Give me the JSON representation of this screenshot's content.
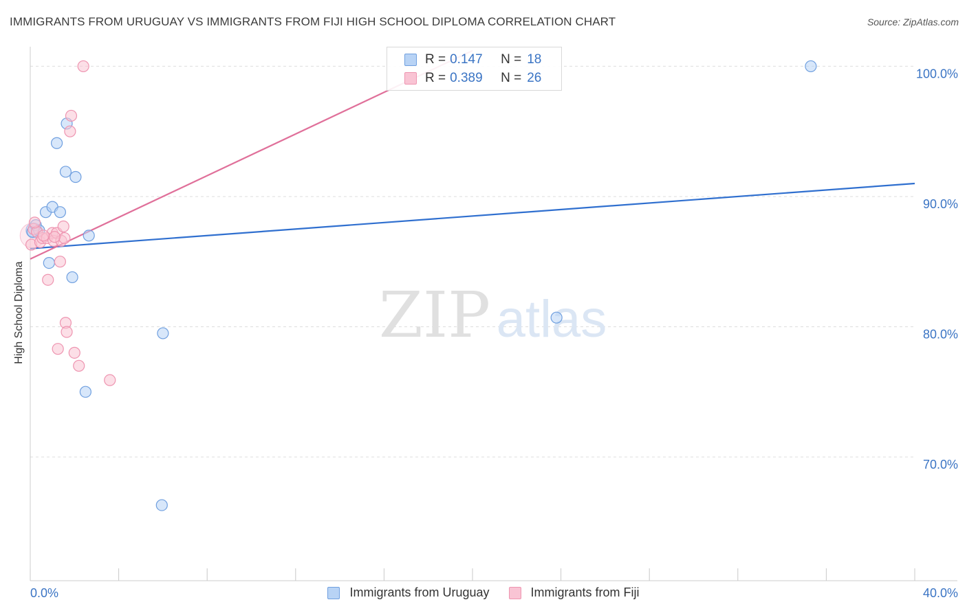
{
  "header": {
    "title": "IMMIGRANTS FROM URUGUAY VS IMMIGRANTS FROM FIJI HIGH SCHOOL DIPLOMA CORRELATION CHART",
    "source": "Source: ZipAtlas.com"
  },
  "watermark": {
    "zip": "ZIP",
    "atlas": "atlas"
  },
  "legend": {
    "rows": [
      {
        "r_label": "R =",
        "r_value": "0.147",
        "n_label": "N =",
        "n_value": "18"
      },
      {
        "r_label": "R =",
        "r_value": "0.389",
        "n_label": "N =",
        "n_value": "26"
      }
    ]
  },
  "colors": {
    "blue_fill": "#b8d3f5",
    "blue_stroke": "#6f9fdf",
    "blue_line": "#2f6fcf",
    "pink_fill": "#f9c4d4",
    "pink_stroke": "#ee94b0",
    "pink_line": "#e0709a",
    "grid": "#dddddd",
    "tick_label": "#3a74c4"
  },
  "chart_data": {
    "type": "scatter",
    "title": "IMMIGRANTS FROM URUGUAY VS IMMIGRANTS FROM FIJI HIGH SCHOOL DIPLOMA CORRELATION CHART",
    "xlabel": "",
    "ylabel": "High School Diploma",
    "xlim": [
      0,
      40
    ],
    "ylim": [
      60.5,
      101.5
    ],
    "x_tick_labels": [
      {
        "value": 0,
        "label": "0.0%"
      },
      {
        "value": 40,
        "label": "40.0%"
      }
    ],
    "y_tick_labels": [
      {
        "value": 100,
        "label": "100.0%"
      },
      {
        "value": 90,
        "label": "90.0%"
      },
      {
        "value": 80,
        "label": "80.0%"
      },
      {
        "value": 70,
        "label": "70.0%"
      }
    ],
    "x_minor_ticks": [
      0,
      4,
      8,
      12,
      16,
      20,
      24,
      28,
      32,
      36,
      40
    ],
    "y_gridlines": [
      100,
      90,
      80,
      70
    ],
    "series": [
      {
        "name": "Immigrants from Uruguay",
        "color": "blue",
        "points": [
          [
            0.1,
            87.3
          ],
          [
            0.25,
            87.8
          ],
          [
            0.4,
            87.4
          ],
          [
            0.7,
            88.8
          ],
          [
            0.85,
            84.9
          ],
          [
            1.0,
            89.2
          ],
          [
            1.2,
            94.1
          ],
          [
            1.35,
            88.8
          ],
          [
            1.6,
            91.9
          ],
          [
            1.65,
            95.6
          ],
          [
            2.05,
            91.5
          ],
          [
            1.9,
            83.8
          ],
          [
            2.65,
            87.0
          ],
          [
            2.5,
            75.0
          ],
          [
            6.0,
            79.5
          ],
          [
            5.95,
            66.3
          ],
          [
            23.8,
            80.7
          ],
          [
            35.3,
            100.0
          ]
        ],
        "trend": {
          "x": [
            0,
            40
          ],
          "y": [
            86.0,
            91.0
          ]
        }
      },
      {
        "name": "Immigrants from Fiji",
        "color": "pink",
        "points": [
          [
            0.05,
            86.3
          ],
          [
            0.15,
            87.5
          ],
          [
            0.3,
            87.3
          ],
          [
            0.45,
            86.5
          ],
          [
            0.55,
            86.8
          ],
          [
            0.75,
            86.8
          ],
          [
            0.8,
            83.6
          ],
          [
            1.0,
            87.2
          ],
          [
            1.05,
            86.6
          ],
          [
            1.2,
            87.2
          ],
          [
            1.25,
            78.3
          ],
          [
            1.4,
            86.6
          ],
          [
            1.35,
            85.0
          ],
          [
            1.5,
            87.7
          ],
          [
            1.55,
            86.8
          ],
          [
            1.6,
            80.3
          ],
          [
            1.65,
            79.6
          ],
          [
            1.8,
            95.0
          ],
          [
            1.85,
            96.2
          ],
          [
            2.0,
            78.0
          ],
          [
            2.2,
            77.0
          ],
          [
            2.4,
            100.0
          ],
          [
            3.6,
            75.9
          ],
          [
            0.2,
            88.0
          ],
          [
            0.6,
            87.0
          ],
          [
            1.1,
            86.9
          ]
        ],
        "trend": {
          "x": [
            0,
            20.0
          ],
          "y": [
            85.2,
            101.2
          ]
        }
      }
    ]
  }
}
